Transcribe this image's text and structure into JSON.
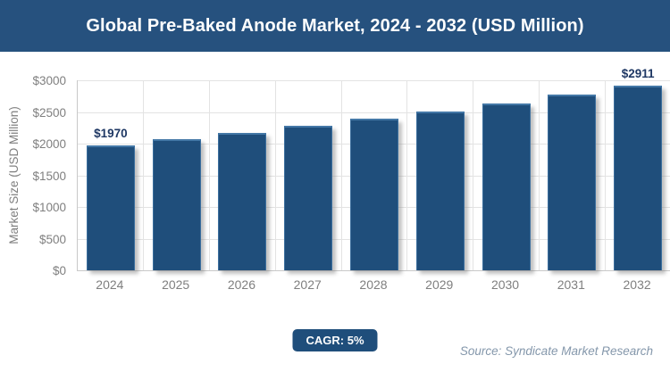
{
  "title_bar": {
    "text": "Global Pre-Baked Anode Market, 2024 - 2032 (USD Million)"
  },
  "chart_data": {
    "type": "bar",
    "title": "Global Pre-Baked Anode Market, 2024 - 2032 (USD Million)",
    "categories": [
      "2024",
      "2025",
      "2026",
      "2027",
      "2028",
      "2029",
      "2030",
      "2031",
      "2032"
    ],
    "values": [
      1970,
      2069,
      2172,
      2281,
      2395,
      2514,
      2640,
      2772,
      2911
    ],
    "point_labels": [
      "$1970",
      "",
      "",
      "",
      "",
      "",
      "",
      "",
      "$2911"
    ],
    "xlabel": "",
    "ylabel": "Market Size (USD Million)",
    "ylim": [
      0,
      3000
    ],
    "ytick_step": 500,
    "ytick_labels": [
      "$0",
      "$500",
      "$1000",
      "$1500",
      "$2000",
      "$2500",
      "$3000"
    ],
    "grid": "horizontal-and-vertical",
    "legend": "none",
    "bar_color": "#1f4e7b"
  },
  "footer": {
    "cagr_label": "CAGR: 5%",
    "source": "Source: Syndicate Market Research"
  },
  "colors": {
    "title_bar_bg": "#26517e",
    "title_text": "#ffffff",
    "bar_fill": "#1f4e7b",
    "bar_highlight": "#4478a7",
    "data_label": "#1f3864",
    "axis_text": "#7f7f7f",
    "gridline": "#e3e3e3",
    "badge_bg": "#1f4e7b",
    "source_text": "#8497ab"
  }
}
